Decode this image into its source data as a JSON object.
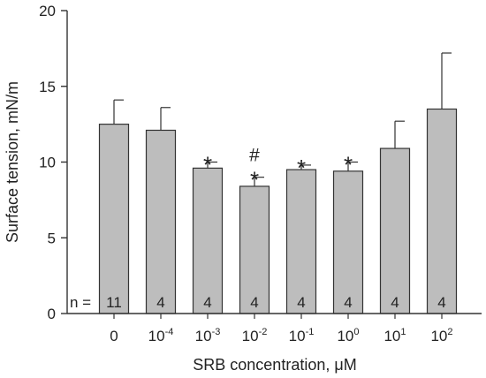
{
  "chart_data": {
    "type": "bar",
    "xlabel": "SRB concentration, μM",
    "ylabel": "Surface tension, mN/m",
    "ylim": [
      0,
      20
    ],
    "yticks": [
      0,
      5,
      10,
      15,
      20
    ],
    "grid": false,
    "bar_color": "#bdbdbd",
    "edge_color": "#333333",
    "n_prefix": "n =",
    "categories": [
      {
        "base": "0",
        "exp": ""
      },
      {
        "base": "10",
        "exp": "-4"
      },
      {
        "base": "10",
        "exp": "-3"
      },
      {
        "base": "10",
        "exp": "-2"
      },
      {
        "base": "10",
        "exp": "-1"
      },
      {
        "base": "10",
        "exp": "0"
      },
      {
        "base": "10",
        "exp": "1"
      },
      {
        "base": "10",
        "exp": "2"
      }
    ],
    "values": [
      12.5,
      12.1,
      9.6,
      8.4,
      9.5,
      9.4,
      10.9,
      13.5
    ],
    "errors": [
      1.6,
      1.5,
      0.4,
      0.6,
      0.3,
      0.6,
      1.8,
      3.7
    ],
    "n": [
      "11",
      "4",
      "4",
      "4",
      "4",
      "4",
      "4",
      "4"
    ],
    "marks": [
      [],
      [],
      [
        "*"
      ],
      [
        "#",
        "*"
      ],
      [
        "*"
      ],
      [
        "*"
      ],
      [],
      []
    ]
  }
}
